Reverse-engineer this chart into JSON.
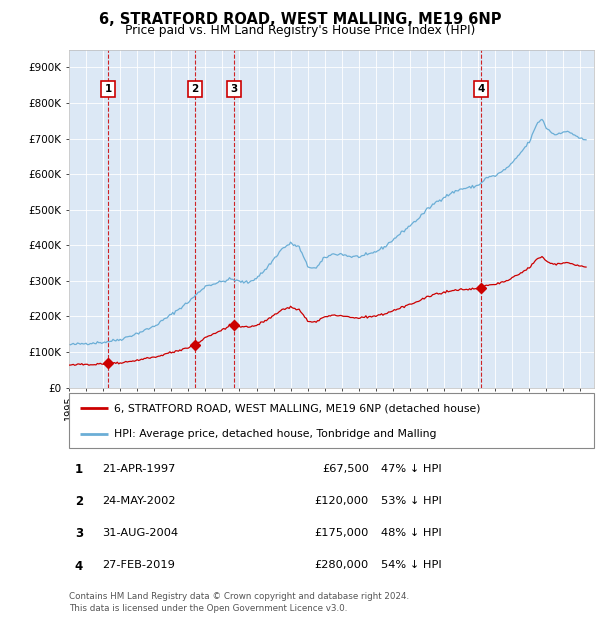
{
  "title": "6, STRATFORD ROAD, WEST MALLING, ME19 6NP",
  "subtitle": "Price paid vs. HM Land Registry's House Price Index (HPI)",
  "bg_color": "#dce8f5",
  "ylim": [
    0,
    950000
  ],
  "yticks": [
    0,
    100000,
    200000,
    300000,
    400000,
    500000,
    600000,
    700000,
    800000,
    900000
  ],
  "ytick_labels": [
    "£0",
    "£100K",
    "£200K",
    "£300K",
    "£400K",
    "£500K",
    "£600K",
    "£700K",
    "£800K",
    "£900K"
  ],
  "xlim_start": 1995.0,
  "xlim_end": 2025.8,
  "transactions": [
    {
      "num": 1,
      "date": "21-APR-1997",
      "year": 1997.3,
      "price": 67500
    },
    {
      "num": 2,
      "date": "24-MAY-2002",
      "year": 2002.4,
      "price": 120000
    },
    {
      "num": 3,
      "date": "31-AUG-2004",
      "year": 2004.67,
      "price": 175000
    },
    {
      "num": 4,
      "date": "27-FEB-2019",
      "year": 2019.17,
      "price": 280000
    }
  ],
  "legend_property_label": "6, STRATFORD ROAD, WEST MALLING, ME19 6NP (detached house)",
  "legend_hpi_label": "HPI: Average price, detached house, Tonbridge and Malling",
  "footer": "Contains HM Land Registry data © Crown copyright and database right 2024.\nThis data is licensed under the Open Government Licence v3.0.",
  "property_line_color": "#cc0000",
  "hpi_line_color": "#6baed6",
  "vline_color": "#cc0000",
  "table_rows": [
    {
      "num": 1,
      "date": "21-APR-1997",
      "price": "£67,500",
      "pct": "47% ↓ HPI"
    },
    {
      "num": 2,
      "date": "24-MAY-2002",
      "price": "£120,000",
      "pct": "53% ↓ HPI"
    },
    {
      "num": 3,
      "date": "31-AUG-2004",
      "price": "£175,000",
      "pct": "48% ↓ HPI"
    },
    {
      "num": 4,
      "date": "27-FEB-2019",
      "price": "£280,000",
      "pct": "54% ↓ HPI"
    }
  ],
  "hpi_anchors": {
    "1995.0": 120000,
    "1996.0": 124000,
    "1997.0": 127000,
    "1998.0": 135000,
    "1999.0": 152000,
    "2000.0": 172000,
    "2001.0": 205000,
    "2002.0": 240000,
    "2003.0": 285000,
    "2004.0": 298000,
    "2004.5": 305000,
    "2005.0": 298000,
    "2005.5": 295000,
    "2006.0": 308000,
    "2006.5": 330000,
    "2007.0": 360000,
    "2007.5": 390000,
    "2008.0": 405000,
    "2008.5": 395000,
    "2009.0": 340000,
    "2009.5": 335000,
    "2010.0": 365000,
    "2010.5": 375000,
    "2011.0": 375000,
    "2011.5": 368000,
    "2012.0": 368000,
    "2012.5": 372000,
    "2013.0": 382000,
    "2013.5": 395000,
    "2014.0": 415000,
    "2014.5": 435000,
    "2015.0": 455000,
    "2015.5": 475000,
    "2016.0": 500000,
    "2016.5": 520000,
    "2017.0": 535000,
    "2017.5": 548000,
    "2018.0": 558000,
    "2018.5": 562000,
    "2019.0": 568000,
    "2019.17": 575000,
    "2019.5": 590000,
    "2020.0": 595000,
    "2020.5": 610000,
    "2021.0": 630000,
    "2021.5": 660000,
    "2022.0": 690000,
    "2022.5": 745000,
    "2022.75": 755000,
    "2023.0": 730000,
    "2023.5": 710000,
    "2024.0": 720000,
    "2024.5": 715000,
    "2025.0": 700000,
    "2025.3": 695000
  }
}
